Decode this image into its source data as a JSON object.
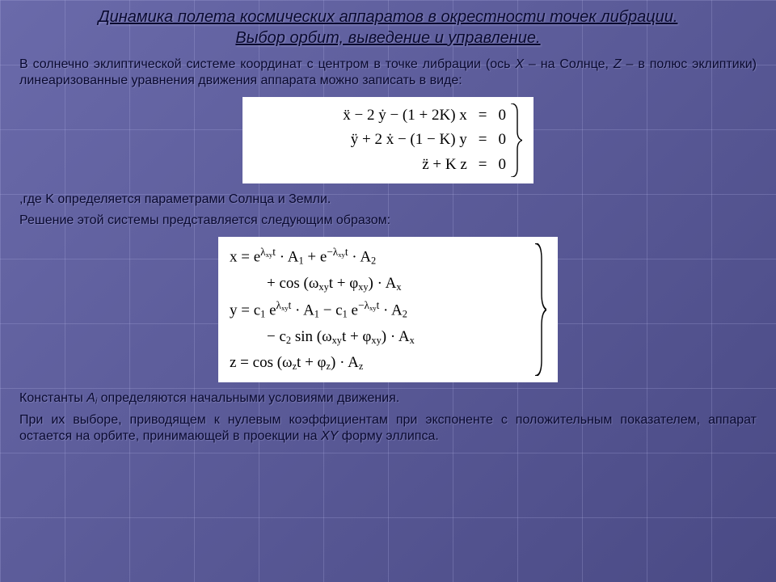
{
  "title_l1": "Динамика полета космических аппаратов в окрестности точек либрации.",
  "title_l2": "Выбор орбит, выведение и управление.",
  "para1_a": "В солнечно эклиптической системе координат с центром в точке либрации (ось ",
  "para1_x": "X",
  "para1_b": " – на Солнце, ",
  "para1_z": "Z",
  "para1_c": " – в полюс эклиптики) линеаризованные уравнения движения аппарата можно записать в виде:",
  "eq1": {
    "r1_lhs": "ẍ − 2 ẏ − (1 + 2K) x",
    "r1_eq": "=",
    "r1_rhs": "0",
    "r2_lhs": "ÿ + 2 ẋ − (1 − K) y",
    "r2_eq": "=",
    "r2_rhs": "0",
    "r3_lhs": "z̈ + K z",
    "r3_eq": "=",
    "r3_rhs": "0"
  },
  "para2": ",где K определяется параметрами Солнца и Земли.",
  "para3": "Решение этой системы представляется следующим образом:",
  "eq2": {
    "r1": "x = e<sup>λ<sub>xy</sub>t</sup> · A<sub>1</sub> + e<sup>−λ<sub>xy</sub>t</sup> · A<sub>2</sub>",
    "r2": "+ cos (ω<sub>xy</sub>t + φ<sub>xy</sub>) · A<sub>x</sub>",
    "r3": "y = c<sub>1</sub> e<sup>λ<sub>xy</sub>t</sup> · A<sub>1</sub> − c<sub>1</sub> e<sup>−λ<sub>xy</sub>t</sup> · A<sub>2</sub>",
    "r4": "− c<sub>2</sub> sin (ω<sub>xy</sub>t + φ<sub>xy</sub>) · A<sub>x</sub>",
    "r5": "z = cos (ω<sub>z</sub>t + φ<sub>z</sub>) · A<sub>z</sub>"
  },
  "para4_a": "Константы ",
  "para4_A": "A",
  "para4_i": "i",
  "para4_b": " определяются начальными условиями движения.",
  "para5_a": "При их выборе, приводящем к нулевым коэффициентам при экспоненте с положительным показателем, аппарат остается на орбите, принимающей в проекции на ",
  "para5_xy": "XY",
  "para5_b": " форму эллипса.",
  "colors": {
    "bg_grad_from": "#6a6aaa",
    "bg_grad_to": "#4a4a85",
    "grid_line": "rgba(180,180,230,0.25)",
    "text": "#0a0a30",
    "eq_bg": "#ffffff"
  }
}
